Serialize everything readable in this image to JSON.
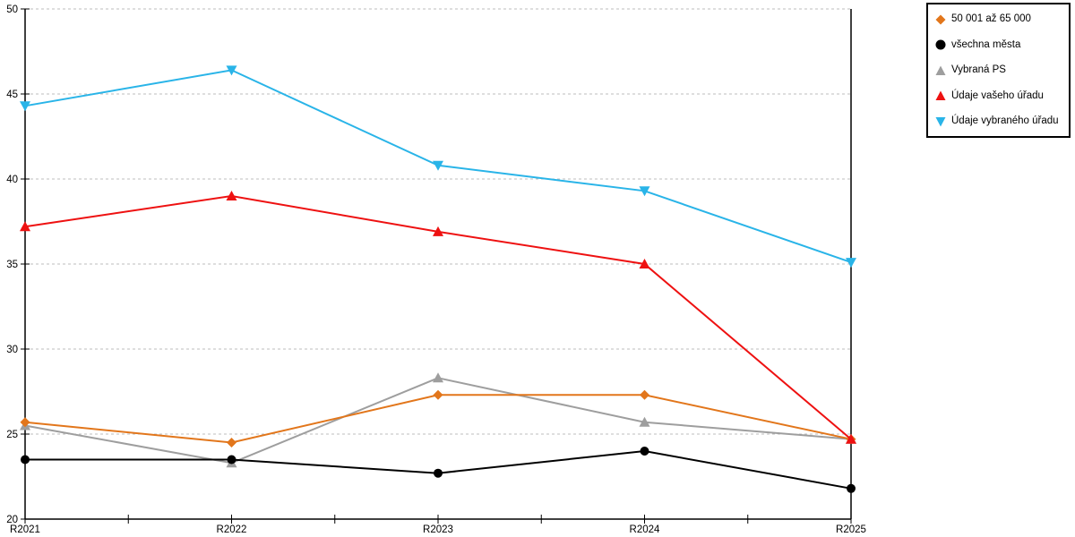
{
  "chart_data": {
    "type": "line",
    "title": "",
    "xlabel": "",
    "ylabel": "",
    "categories": [
      "R2021",
      "R2022",
      "R2023",
      "R2024",
      "R2025"
    ],
    "series": [
      {
        "name": "50 001 až 65 000",
        "marker": "diamond",
        "color": "#E2761B",
        "values": [
          25.7,
          24.5,
          27.3,
          27.3,
          24.7
        ]
      },
      {
        "name": "všechna města",
        "marker": "circle",
        "color": "#000000",
        "values": [
          23.5,
          23.5,
          22.7,
          24.0,
          21.8
        ]
      },
      {
        "name": "Vybraná PS",
        "marker": "triangle-up",
        "color": "#9E9E9E",
        "values": [
          25.5,
          23.3,
          28.3,
          25.7,
          24.7
        ]
      },
      {
        "name": "Údaje vašeho úřadu",
        "marker": "triangle-up",
        "color": "#EE1111",
        "values": [
          37.2,
          39.0,
          36.9,
          35.0,
          24.7
        ]
      },
      {
        "name": "Údaje vybraného úřadu",
        "marker": "triangle-down",
        "color": "#29B4E8",
        "values": [
          44.3,
          46.4,
          40.8,
          39.3,
          35.1
        ]
      }
    ],
    "ylim": [
      20,
      50
    ],
    "ytick_step": 5,
    "ytick_labels": [
      "20",
      "25",
      "30",
      "35",
      "40",
      "45",
      "50"
    ],
    "grid": "horizontal-dashed",
    "grid_color": "#BDBDBD",
    "axis_color": "#000000",
    "legend_position": "top-right",
    "draw_order": [
      2,
      0,
      1,
      3,
      4
    ]
  }
}
